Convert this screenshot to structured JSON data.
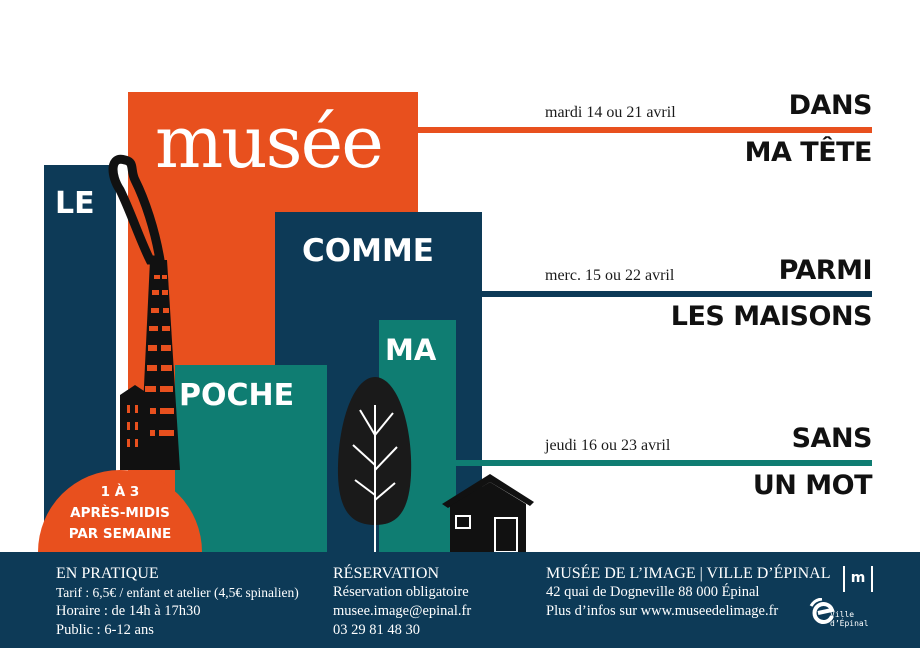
{
  "colors": {
    "orange": "#e8501e",
    "navy": "#0d3a57",
    "teal": "#0f7d72",
    "black": "#111111"
  },
  "poster": {
    "word_le": "LE",
    "word_musee": "musée",
    "word_comme": "COMME",
    "word_ma": "MA",
    "word_poche": "POCHE",
    "badge": {
      "line1": "1 À 3",
      "line2": "APRÈS-MIDIS",
      "line3": "PAR SEMAINE"
    }
  },
  "sessions": [
    {
      "date": "mardi 14 ou 21 avril",
      "title1": "DANS",
      "title2": "MA TÊTE",
      "color": "orange"
    },
    {
      "date": "merc. 15 ou 22 avril",
      "title1": "PARMI",
      "title2": "LES MAISONS",
      "color": "navy"
    },
    {
      "date": "jeudi 16 ou 23 avril",
      "title1": "SANS",
      "title2": "UN MOT",
      "color": "teal"
    }
  ],
  "footer": {
    "pratique": {
      "heading": "EN PRATIQUE",
      "tarif": "Tarif : 6,5€ / enfant et atelier (4,5€ spinalien)",
      "horaire": "Horaire : de 14h à 17h30",
      "public": "Public : 6-12 ans"
    },
    "reservation": {
      "heading": "RÉSERVATION",
      "line1": "Réservation obligatoire",
      "email": "musee.image@epinal.fr",
      "phone": "03 29 81 48 30"
    },
    "musee": {
      "heading": "MUSÉE DE L’IMAGE | VILLE D’ÉPINAL",
      "address": "42 quai de Dogneville 88 000 Épinal",
      "infos": "Plus d’infos sur www.museedelimage.fr"
    },
    "logos": {
      "museum_logo": "m",
      "city_logo": "Ville d’Épinal"
    }
  }
}
